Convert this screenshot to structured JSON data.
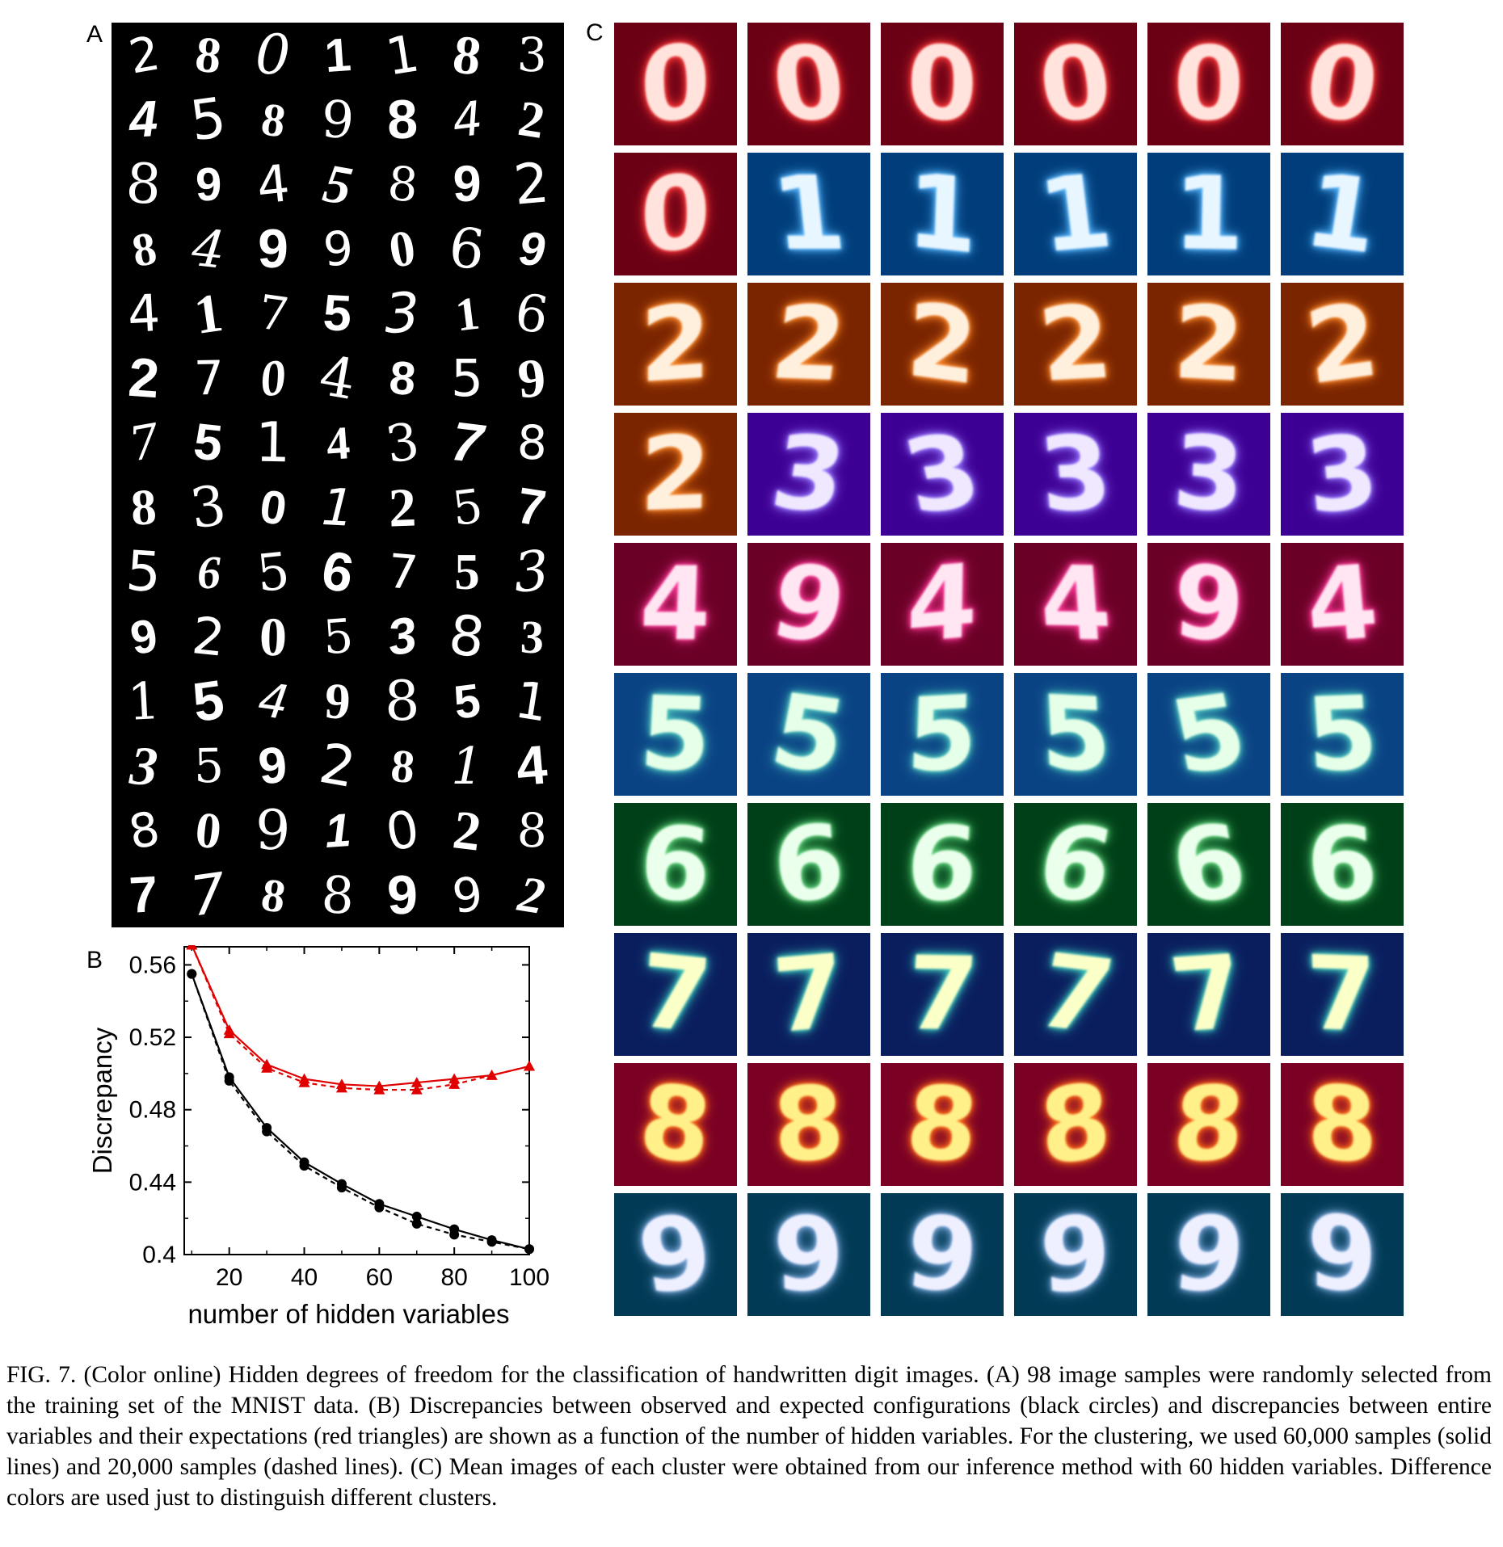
{
  "panel_labels": {
    "a": "A",
    "b": "B",
    "c": "C"
  },
  "panel_a": {
    "rows": [
      "2801183",
      "4589842",
      "8945892",
      "8499069",
      "4175316",
      "2704859",
      "7514378",
      "8301257",
      "5656753",
      "9205383",
      "1549851",
      "3592814",
      "8091028",
      "7788992"
    ]
  },
  "panel_c": {
    "rows": [
      {
        "digits": [
          "0",
          "0",
          "0",
          "0",
          "0",
          "0"
        ],
        "bg": [
          "#6b0014",
          "#6b0014",
          "#6b0014",
          "#6b0014",
          "#6b0014",
          "#6b0014"
        ],
        "fg": [
          "#ffe3dc",
          "#ffe3dc",
          "#ffe3dc",
          "#ffe3dc",
          "#ffe3dc",
          "#ffe3dc"
        ],
        "glow": [
          "#ff3b3b",
          "#ff3b3b",
          "#ff3b3b",
          "#ff3b3b",
          "#ff3b3b",
          "#ff3b3b"
        ]
      },
      {
        "digits": [
          "0",
          "1",
          "1",
          "1",
          "1",
          "1"
        ],
        "bg": [
          "#6b0014",
          "#003d7a",
          "#003d7a",
          "#003d7a",
          "#003d7a",
          "#003d7a"
        ],
        "fg": [
          "#ffe3dc",
          "#e8f6ff",
          "#e8f6ff",
          "#e8f6ff",
          "#e8f6ff",
          "#e8f6ff"
        ],
        "glow": [
          "#ff3b3b",
          "#58b8ff",
          "#58b8ff",
          "#58b8ff",
          "#58b8ff",
          "#58b8ff"
        ]
      },
      {
        "digits": [
          "2",
          "2",
          "2",
          "2",
          "2",
          "2"
        ],
        "bg": [
          "#7a2400",
          "#7a2400",
          "#7a2400",
          "#7a2400",
          "#7a2400",
          "#7a2400"
        ],
        "fg": [
          "#fff0de",
          "#fff0de",
          "#fff0de",
          "#fff0de",
          "#fff0de",
          "#fff0de"
        ],
        "glow": [
          "#ff8a2a",
          "#ff8a2a",
          "#ff8a2a",
          "#ff8a2a",
          "#ff8a2a",
          "#ff8a2a"
        ]
      },
      {
        "digits": [
          "2",
          "3",
          "3",
          "3",
          "3",
          "3"
        ],
        "bg": [
          "#7a2400",
          "#3d0094",
          "#3d0094",
          "#3d0094",
          "#3d0094",
          "#3d0094"
        ],
        "fg": [
          "#fff0de",
          "#efe8ff",
          "#efe8ff",
          "#efe8ff",
          "#efe8ff",
          "#efe8ff"
        ],
        "glow": [
          "#ff8a2a",
          "#9a7bff",
          "#9a7bff",
          "#9a7bff",
          "#9a7bff",
          "#9a7bff"
        ]
      },
      {
        "digits": [
          "4",
          "9",
          "4",
          "4",
          "9",
          "4"
        ],
        "bg": [
          "#6b0026",
          "#6b0026",
          "#6b0026",
          "#6b0026",
          "#6b0026",
          "#6b0026"
        ],
        "fg": [
          "#ffe6f2",
          "#ffe6f2",
          "#ffe6f2",
          "#ffe6f2",
          "#ffe6f2",
          "#ffe6f2"
        ],
        "glow": [
          "#ff3a9a",
          "#ff3a9a",
          "#ff3a9a",
          "#ff3a9a",
          "#ff3a9a",
          "#ff3a9a"
        ]
      },
      {
        "digits": [
          "5",
          "5",
          "5",
          "5",
          "5",
          "5"
        ],
        "bg": [
          "#0a4384",
          "#0a4384",
          "#0a4384",
          "#0a4384",
          "#0a4384",
          "#0a4384"
        ],
        "fg": [
          "#e6ffe8",
          "#e6ffe8",
          "#e6ffe8",
          "#e6ffe8",
          "#e6ffe8",
          "#e6ffe8"
        ],
        "glow": [
          "#4fc9c0",
          "#4fc9c0",
          "#4fc9c0",
          "#4fc9c0",
          "#4fc9c0",
          "#4fc9c0"
        ]
      },
      {
        "digits": [
          "6",
          "6",
          "6",
          "6",
          "6",
          "6"
        ],
        "bg": [
          "#004018",
          "#004018",
          "#004018",
          "#004018",
          "#004018",
          "#004018"
        ],
        "fg": [
          "#eaffec",
          "#eaffec",
          "#eaffec",
          "#eaffec",
          "#eaffec",
          "#eaffec"
        ],
        "glow": [
          "#5ed37a",
          "#5ed37a",
          "#5ed37a",
          "#5ed37a",
          "#5ed37a",
          "#5ed37a"
        ]
      },
      {
        "digits": [
          "7",
          "7",
          "7",
          "7",
          "7",
          "7"
        ],
        "bg": [
          "#0a1e5e",
          "#0a1e5e",
          "#0a1e5e",
          "#0a1e5e",
          "#0a1e5e",
          "#0a1e5e"
        ],
        "fg": [
          "#fbffc8",
          "#fbffc8",
          "#fbffc8",
          "#fbffc8",
          "#fbffc8",
          "#fbffc8"
        ],
        "glow": [
          "#3fd0c0",
          "#3fd0c0",
          "#3fd0c0",
          "#3fd0c0",
          "#3fd0c0",
          "#3fd0c0"
        ]
      },
      {
        "digits": [
          "8",
          "8",
          "8",
          "8",
          "8",
          "8"
        ],
        "bg": [
          "#7a0024",
          "#7a0024",
          "#7a0024",
          "#7a0024",
          "#7a0024",
          "#7a0024"
        ],
        "fg": [
          "#fff08a",
          "#fff08a",
          "#fff08a",
          "#fff08a",
          "#fff08a",
          "#fff08a"
        ],
        "glow": [
          "#ff6a1a",
          "#ff6a1a",
          "#ff6a1a",
          "#ff6a1a",
          "#ff6a1a",
          "#ff6a1a"
        ]
      },
      {
        "digits": [
          "9",
          "9",
          "9",
          "9",
          "9",
          "9"
        ],
        "bg": [
          "#003a55",
          "#003a55",
          "#003a55",
          "#003a55",
          "#003a55",
          "#003a55"
        ],
        "fg": [
          "#eef0ff",
          "#eef0ff",
          "#eef0ff",
          "#eef0ff",
          "#eef0ff",
          "#eef0ff"
        ],
        "glow": [
          "#7aa6d8",
          "#7aa6d8",
          "#7aa6d8",
          "#7aa6d8",
          "#7aa6d8",
          "#7aa6d8"
        ]
      }
    ]
  },
  "chart_data": {
    "type": "line",
    "title": "",
    "xlabel": "number of hidden variables",
    "ylabel": "Discrepancy",
    "xlim": [
      8,
      100
    ],
    "ylim": [
      0.4,
      0.57
    ],
    "xticks": [
      20,
      40,
      60,
      80,
      100
    ],
    "yticks": [
      0.4,
      0.44,
      0.48,
      0.52,
      0.56
    ],
    "ytick_labels": [
      "0.4",
      "0.44",
      "0.48",
      "0.52",
      "0.56"
    ],
    "legend": "none",
    "series": [
      {
        "marker": "circle",
        "color": "#000000",
        "dash": "solid",
        "x": [
          10,
          20,
          30,
          40,
          50,
          60,
          70,
          80,
          90,
          100
        ],
        "y": [
          0.555,
          0.498,
          0.47,
          0.451,
          0.439,
          0.428,
          0.421,
          0.414,
          0.408,
          0.403
        ]
      },
      {
        "marker": "circle",
        "color": "#000000",
        "dash": "dashed",
        "x": [
          10,
          20,
          30,
          40,
          50,
          60,
          70,
          80,
          90,
          100
        ],
        "y": [
          0.555,
          0.496,
          0.468,
          0.449,
          0.437,
          0.426,
          0.417,
          0.411,
          0.407,
          0.403
        ]
      },
      {
        "marker": "triangle",
        "color": "#e00000",
        "dash": "solid",
        "x": [
          10,
          20,
          30,
          40,
          50,
          60,
          70,
          80,
          90,
          100
        ],
        "y": [
          0.571,
          0.524,
          0.505,
          0.497,
          0.494,
          0.493,
          0.495,
          0.497,
          0.499,
          0.504
        ]
      },
      {
        "marker": "triangle",
        "color": "#e00000",
        "dash": "dashed",
        "x": [
          10,
          20,
          30,
          40,
          50,
          60,
          70,
          80,
          90,
          100
        ],
        "y": [
          0.571,
          0.522,
          0.503,
          0.495,
          0.492,
          0.491,
          0.491,
          0.494,
          0.499,
          0.504
        ]
      }
    ]
  },
  "caption": "FIG. 7.   (Color online) Hidden degrees of freedom for the classification of handwritten digit images. (A) 98 image samples were randomly selected from the training set of the MNIST data. (B) Discrepancies between observed and expected configurations (black circles) and discrepancies between entire variables and their expectations (red triangles) are shown as a function of the number of hidden variables. For the clustering, we used 60,000 samples (solid lines) and 20,000 samples (dashed lines). (C) Mean images of each cluster were obtained from our inference method with 60 hidden variables. Difference colors are used just to distinguish different clusters."
}
